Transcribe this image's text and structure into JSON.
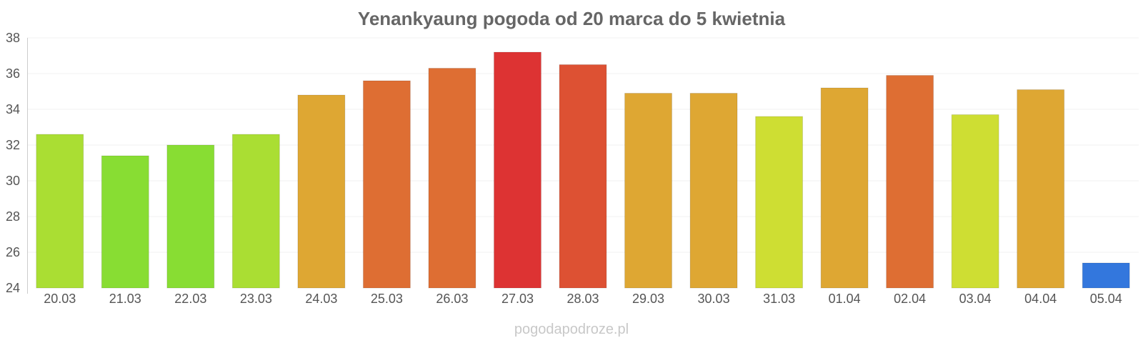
{
  "chart_data": {
    "type": "bar",
    "title": "Yenankyaung pogoda od 20 marca do 5 kwietnia",
    "xlabel": "",
    "ylabel": "",
    "categories": [
      "20.03",
      "21.03",
      "22.03",
      "23.03",
      "24.03",
      "25.03",
      "26.03",
      "27.03",
      "28.03",
      "29.03",
      "30.03",
      "31.03",
      "01.04",
      "02.04",
      "03.04",
      "04.04",
      "05.04"
    ],
    "values": [
      32.6,
      31.4,
      32.0,
      32.6,
      34.8,
      35.6,
      36.3,
      37.2,
      36.5,
      34.9,
      34.9,
      33.6,
      35.2,
      35.9,
      33.7,
      35.1,
      25.4
    ],
    "colors": [
      "#aade33",
      "#88dd33",
      "#88dd33",
      "#aade33",
      "#dea733",
      "#de6e33",
      "#de6e33",
      "#dd3333",
      "#dd5133",
      "#dea733",
      "#dea733",
      "#cede33",
      "#dea733",
      "#de6e33",
      "#cede33",
      "#dea733",
      "#3377dd"
    ],
    "ylim": [
      24,
      38
    ],
    "yticks": [
      24,
      26,
      28,
      30,
      32,
      34,
      36,
      38
    ],
    "grid": true,
    "legend": "none"
  },
  "watermark": "pogodapodroze.pl"
}
